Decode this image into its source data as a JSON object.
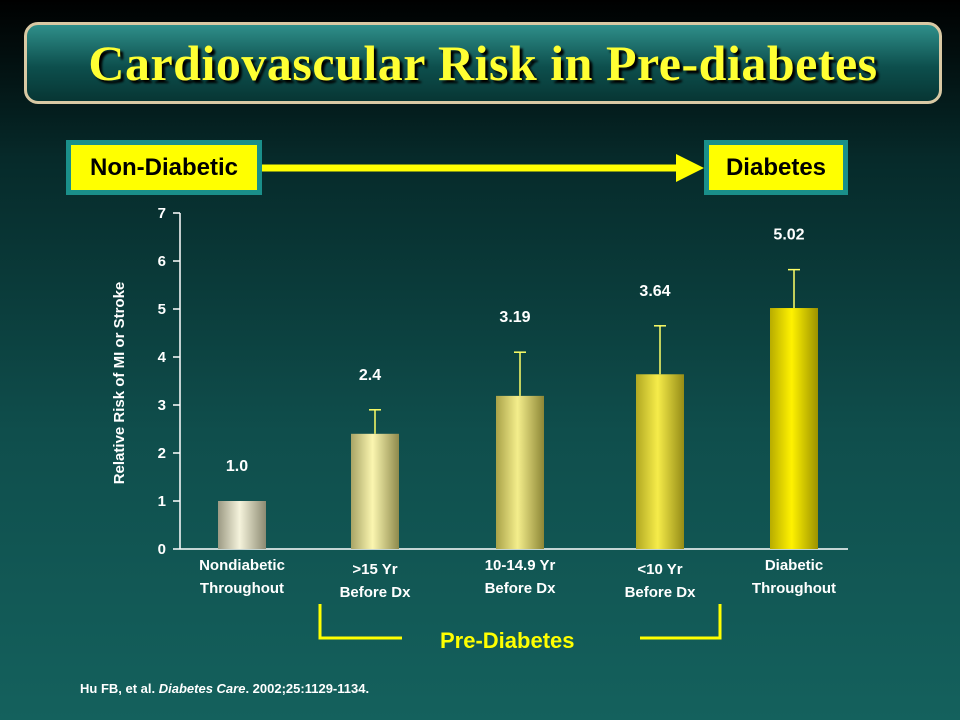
{
  "title": "Cardiovascular Risk in Pre-diabetes",
  "scale": {
    "left_label": "Non-Diabetic",
    "right_label": "Diabetes"
  },
  "bracket_label": "Pre-Diabetes",
  "citation": {
    "authors": "Hu FB, et al. ",
    "journal": "Diabetes Care",
    "details": ". 2002;25:1129-1134."
  },
  "colors": {
    "accent_yellow": "#ffff00",
    "box_border": "#1a8f8a"
  },
  "chart_data": {
    "type": "bar",
    "ylabel": "Relative Risk of MI or Stroke",
    "ylim": [
      0,
      7
    ],
    "yticks": [
      "0",
      "1",
      "2",
      "3",
      "4",
      "5",
      "6",
      "7"
    ],
    "categories": [
      [
        "Nondiabetic",
        "Throughout"
      ],
      [
        ">15 Yr",
        "Before Dx"
      ],
      [
        "10-14.9 Yr",
        "Before Dx"
      ],
      [
        "<10 Yr",
        "Before Dx"
      ],
      [
        "Diabetic",
        "Throughout"
      ]
    ],
    "values": [
      1.0,
      2.4,
      3.19,
      3.64,
      5.02
    ],
    "value_labels": [
      "1.0",
      "2.4",
      "3.19",
      "3.64",
      "5.02"
    ],
    "error_upper": [
      null,
      2.9,
      4.1,
      4.65,
      5.82
    ]
  }
}
